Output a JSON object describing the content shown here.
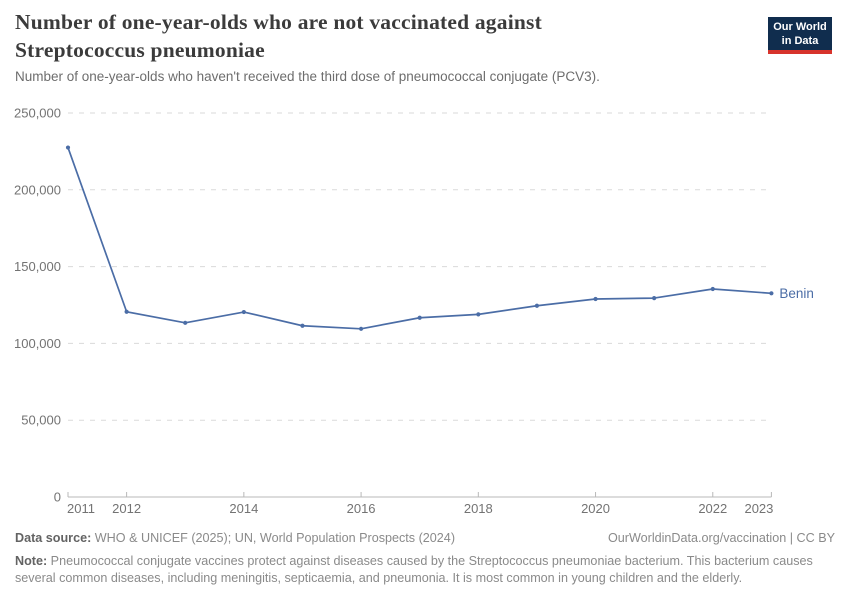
{
  "header": {
    "title": "Number of one-year-olds who are not vaccinated against Streptococcus pneumoniae",
    "subtitle": "Number of one-year-olds who haven't received the third dose of pneumococcal conjugate (PCV3).",
    "logo": {
      "line1": "Our World",
      "line2": "in Data",
      "bg_color": "#102d4e",
      "accent_color": "#d7332c"
    }
  },
  "chart_data": {
    "type": "line",
    "title": "Number of one-year-olds who are not vaccinated against Streptococcus pneumoniae",
    "subtitle": "Number of one-year-olds who haven't received the third dose of pneumococcal conjugate (PCV3).",
    "x": [
      2011,
      2012,
      2013,
      2014,
      2015,
      2016,
      2017,
      2018,
      2019,
      2020,
      2021,
      2022,
      2023
    ],
    "series": [
      {
        "name": "Benin",
        "color": "#4b6da6",
        "values": [
          227500,
          120600,
          113400,
          120400,
          111500,
          109500,
          116700,
          118900,
          124500,
          128900,
          129500,
          135400,
          132600
        ]
      }
    ],
    "xlabel": "",
    "ylabel": "",
    "ylim": [
      0,
      250000
    ],
    "xlim": [
      2011,
      2023
    ],
    "yticks": {
      "values": [
        0,
        50000,
        100000,
        150000,
        200000,
        250000
      ],
      "labels": [
        "0",
        "50,000",
        "100,000",
        "150,000",
        "200,000",
        "250,000"
      ]
    },
    "xticks": {
      "values": [
        2011,
        2012,
        2014,
        2016,
        2018,
        2020,
        2022,
        2023
      ],
      "labels": [
        "2011",
        "2012",
        "2014",
        "2016",
        "2018",
        "2020",
        "2022",
        "2023"
      ]
    },
    "grid": "horizontal-dashed",
    "legend_position": "end-of-line-label",
    "end_label": "Benin"
  },
  "footer": {
    "datasource_label": "Data source:",
    "datasource_text": " WHO & UNICEF (2025); UN, World Population Prospects (2024)",
    "credit": "OurWorldinData.org/vaccination | CC BY",
    "note_label": "Note:",
    "note_text": " Pneumococcal conjugate vaccines protect against diseases caused by the Streptococcus pneumoniae bacterium. This bacterium causes several common diseases, including meningitis, septicaemia, and pneumonia. It is most common in young children and the elderly."
  },
  "colors": {
    "line": "#4b6da6",
    "grid": "#dadada",
    "axis": "#b8b8b8",
    "tick_label": "#737373",
    "title": "#3b3b3b",
    "subtitle": "#6d6d6d",
    "footer": "#8a8a8a"
  }
}
